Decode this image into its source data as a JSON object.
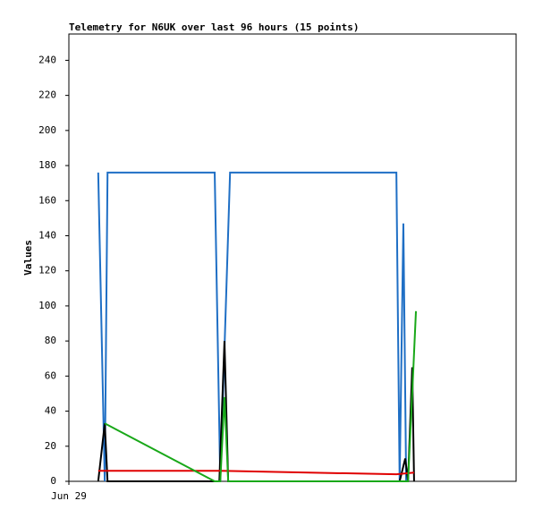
{
  "chart_data": {
    "type": "line",
    "title": "Telemetry for N6UK over last 96 hours (15 points)",
    "y_label": "Values",
    "xlim": [
      0,
      96
    ],
    "xticks": [
      {
        "value": 0,
        "label": "Jun 29"
      }
    ],
    "ylim": [
      0,
      255
    ],
    "yticks": [
      0,
      20,
      40,
      60,
      80,
      100,
      120,
      140,
      160,
      180,
      200,
      220,
      240
    ],
    "series": [
      {
        "color": "#1f6fc5",
        "x": [
          6.3,
          7.7,
          8.3,
          31.3,
          32.5,
          34.6,
          70.3,
          71.0,
          71.8,
          72.4
        ],
        "values": [
          176,
          0,
          176,
          176,
          0,
          176,
          176,
          0,
          147,
          0
        ]
      },
      {
        "color": "#000000",
        "x": [
          6.3,
          7.7,
          8.3,
          32.3,
          33.4,
          34.2,
          71.0,
          72.2,
          72.8,
          73.7,
          74.1
        ],
        "values": [
          0,
          33,
          0,
          0,
          80,
          0,
          0,
          13,
          0,
          65,
          0
        ]
      },
      {
        "color": "#e00000",
        "x": [
          6.3,
          8.3,
          32.3,
          70.3,
          74.1
        ],
        "values": [
          6,
          6,
          6,
          4,
          5
        ]
      },
      {
        "color": "#19a819",
        "x": [
          7.7,
          31.3,
          32.5,
          33.4,
          34.2,
          72.8,
          73.7,
          74.5
        ],
        "values": [
          33,
          0,
          0,
          48,
          0,
          0,
          50,
          97
        ]
      }
    ]
  }
}
